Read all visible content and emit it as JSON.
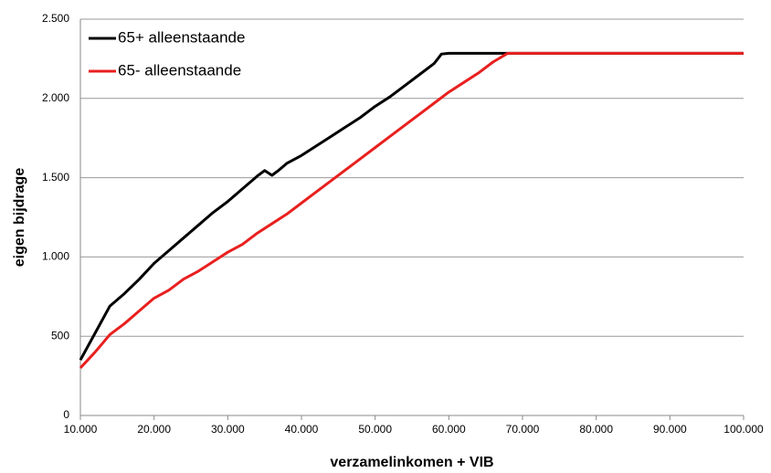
{
  "chart_data": {
    "type": "line",
    "x_label": "verzamelinkomen + VIB",
    "y_label": "eigen bijdrage",
    "xlim": [
      10000,
      100000
    ],
    "ylim": [
      0,
      2500
    ],
    "xticks": [
      {
        "value": 10000,
        "label": "10.000"
      },
      {
        "value": 20000,
        "label": "20.000"
      },
      {
        "value": 30000,
        "label": "30.000"
      },
      {
        "value": 40000,
        "label": "40.000"
      },
      {
        "value": 50000,
        "label": "50.000"
      },
      {
        "value": 60000,
        "label": "60.000"
      },
      {
        "value": 70000,
        "label": "70.000"
      },
      {
        "value": 80000,
        "label": "80.000"
      },
      {
        "value": 90000,
        "label": "90.000"
      },
      {
        "value": 100000,
        "label": "100.000"
      }
    ],
    "yticks": [
      0,
      500,
      {
        "value": 1000,
        "label": "1.000"
      },
      {
        "value": 1500,
        "label": "1.500"
      },
      {
        "value": 2000,
        "label": "2.000"
      },
      {
        "value": 2500,
        "label": "2.500"
      }
    ],
    "grid": true,
    "legend": "top-left",
    "series": [
      {
        "name": "65+ alleenstaande",
        "color": "#000000",
        "x": [
          10000,
          12000,
          14000,
          16000,
          18000,
          20000,
          22000,
          24000,
          26000,
          28000,
          30000,
          32000,
          34000,
          35000,
          36000,
          37000,
          38000,
          40000,
          42000,
          44000,
          46000,
          48000,
          50000,
          52000,
          54000,
          56000,
          58000,
          59000,
          60000,
          100000
        ],
        "values": [
          350,
          520,
          690,
          770,
          860,
          960,
          1040,
          1120,
          1200,
          1280,
          1350,
          1430,
          1510,
          1545,
          1515,
          1550,
          1590,
          1640,
          1700,
          1760,
          1820,
          1880,
          1950,
          2010,
          2080,
          2150,
          2220,
          2280,
          2285,
          2285
        ]
      },
      {
        "name": "65- alleenstaande",
        "color": "#e8201f",
        "x": [
          10000,
          12000,
          14000,
          16000,
          18000,
          20000,
          22000,
          24000,
          26000,
          28000,
          30000,
          32000,
          34000,
          36000,
          38000,
          40000,
          42000,
          44000,
          46000,
          48000,
          50000,
          52000,
          54000,
          56000,
          58000,
          60000,
          62000,
          64000,
          66000,
          68000,
          100000
        ],
        "values": [
          300,
          400,
          510,
          580,
          660,
          740,
          790,
          860,
          910,
          970,
          1030,
          1080,
          1150,
          1210,
          1270,
          1340,
          1410,
          1480,
          1550,
          1620,
          1690,
          1760,
          1830,
          1900,
          1970,
          2040,
          2100,
          2160,
          2230,
          2285,
          2285
        ]
      }
    ]
  }
}
